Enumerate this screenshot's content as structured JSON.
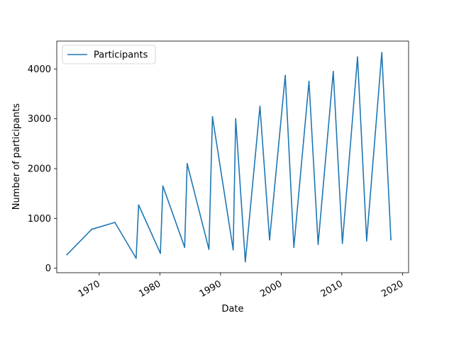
{
  "chart_data": {
    "type": "line",
    "title": "",
    "xlabel": "Date",
    "ylabel": "Number of participants",
    "x_type": "date",
    "xlim": [
      "1963-01-01",
      "2021-01-01"
    ],
    "ylim": [
      -90,
      4560
    ],
    "x_ticks": [
      {
        "date": "1970-01-01",
        "label": "1970"
      },
      {
        "date": "1980-01-01",
        "label": "1980"
      },
      {
        "date": "1990-01-01",
        "label": "1990"
      },
      {
        "date": "2000-01-01",
        "label": "2000"
      },
      {
        "date": "2010-01-01",
        "label": "2010"
      },
      {
        "date": "2020-01-01",
        "label": "2020"
      }
    ],
    "y_ticks": [
      {
        "value": 0,
        "label": "0"
      },
      {
        "value": 1000,
        "label": "1000"
      },
      {
        "value": 2000,
        "label": "2000"
      },
      {
        "value": 3000,
        "label": "3000"
      },
      {
        "value": 4000,
        "label": "4000"
      }
    ],
    "legend_position": "top-left",
    "grid": false,
    "series": [
      {
        "name": "Participants",
        "color": "#1f77b4",
        "points": [
          {
            "x": "1964-09-01",
            "y": 270
          },
          {
            "x": "1968-10-01",
            "y": 780
          },
          {
            "x": "1972-08-01",
            "y": 920
          },
          {
            "x": "1976-02-01",
            "y": 200
          },
          {
            "x": "1976-07-01",
            "y": 1270
          },
          {
            "x": "1980-02-01",
            "y": 300
          },
          {
            "x": "1980-07-01",
            "y": 1650
          },
          {
            "x": "1984-02-01",
            "y": 420
          },
          {
            "x": "1984-07-01",
            "y": 2100
          },
          {
            "x": "1988-02-01",
            "y": 380
          },
          {
            "x": "1988-09-01",
            "y": 3040
          },
          {
            "x": "1992-02-01",
            "y": 370
          },
          {
            "x": "1992-07-01",
            "y": 3000
          },
          {
            "x": "1994-02-01",
            "y": 130
          },
          {
            "x": "1996-07-01",
            "y": 3250
          },
          {
            "x": "1998-02-01",
            "y": 570
          },
          {
            "x": "2000-09-01",
            "y": 3870
          },
          {
            "x": "2002-02-01",
            "y": 420
          },
          {
            "x": "2004-08-01",
            "y": 3750
          },
          {
            "x": "2006-02-01",
            "y": 480
          },
          {
            "x": "2008-08-01",
            "y": 3950
          },
          {
            "x": "2010-02-01",
            "y": 500
          },
          {
            "x": "2012-08-01",
            "y": 4240
          },
          {
            "x": "2014-02-01",
            "y": 550
          },
          {
            "x": "2016-08-01",
            "y": 4330
          },
          {
            "x": "2018-02-01",
            "y": 570
          }
        ]
      }
    ]
  }
}
